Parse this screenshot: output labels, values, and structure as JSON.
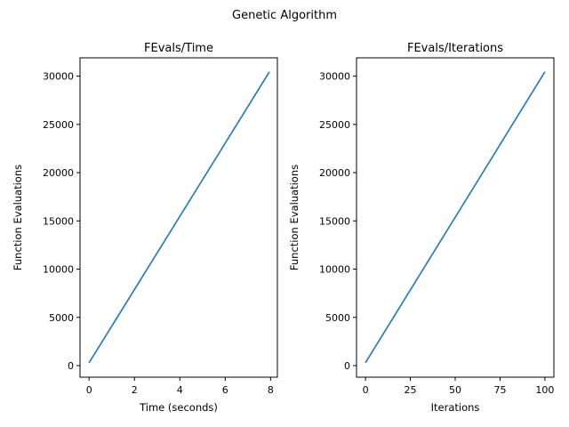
{
  "figure": {
    "suptitle": "Genetic Algorithm"
  },
  "chart_data": [
    {
      "type": "line",
      "title": "FEvals/Time",
      "xlabel": "Time (seconds)",
      "ylabel": "Function Evaluations",
      "xlim": [
        -0.4,
        8.3
      ],
      "ylim": [
        -1200,
        31900
      ],
      "xticks": [
        0,
        2,
        4,
        6,
        8
      ],
      "yticks": [
        0,
        5000,
        10000,
        15000,
        20000,
        25000,
        30000
      ],
      "grid": false,
      "series": [
        {
          "color": "#1f77b4",
          "x": [
            0,
            7.95
          ],
          "y": [
            300,
            30450
          ]
        }
      ]
    },
    {
      "type": "line",
      "title": "FEvals/Iterations",
      "xlabel": "Iterations",
      "ylabel": "Function Evaluations",
      "xlim": [
        -5,
        105
      ],
      "ylim": [
        -1200,
        31900
      ],
      "xticks": [
        0,
        25,
        50,
        75,
        100
      ],
      "yticks": [
        0,
        5000,
        10000,
        15000,
        20000,
        25000,
        30000
      ],
      "grid": false,
      "series": [
        {
          "color": "#1f77b4",
          "x": [
            0,
            100
          ],
          "y": [
            300,
            30450
          ]
        }
      ]
    }
  ]
}
